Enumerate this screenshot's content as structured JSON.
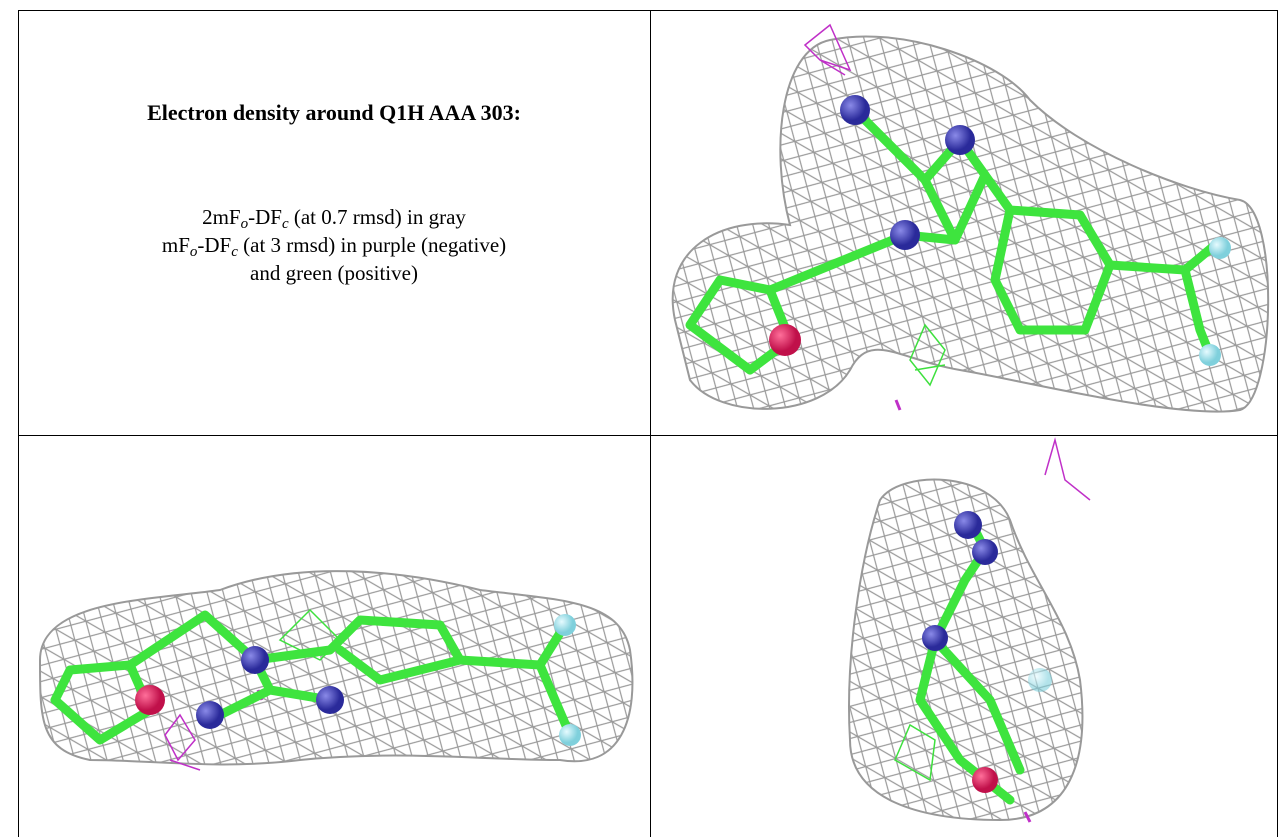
{
  "heading": "Electron density around Q1H AAA 303:",
  "caption": [
    {
      "parts": [
        "2mF",
        "o",
        "-DF",
        "c",
        " (at 0.7 rmsd) in gray"
      ]
    },
    {
      "parts": [
        "mF",
        "o",
        "-DF",
        "c",
        " (at 3 rmsd) in purple (negative)"
      ]
    },
    {
      "parts": [
        "and green (positive)"
      ]
    }
  ]
}
